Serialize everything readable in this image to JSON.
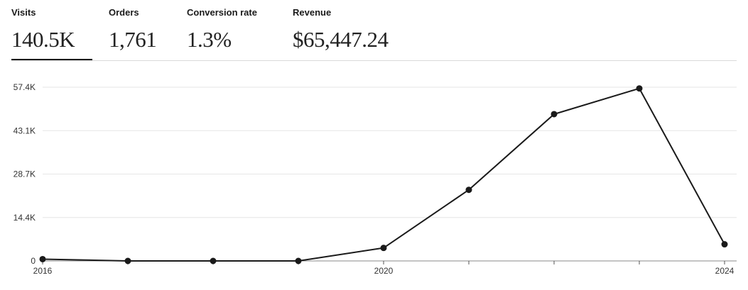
{
  "metrics": [
    {
      "label": "Visits",
      "value": "140.5K",
      "selected": true
    },
    {
      "label": "Orders",
      "value": "1,761",
      "selected": false
    },
    {
      "label": "Conversion rate",
      "value": "1.3%",
      "selected": false
    },
    {
      "label": "Revenue",
      "value": "$65,447.24",
      "selected": false
    }
  ],
  "chart_data": {
    "type": "line",
    "x": [
      2016,
      2017,
      2018,
      2019,
      2020,
      2021,
      2022,
      2023,
      2024
    ],
    "series": [
      {
        "values": [
          600,
          0,
          0,
          0,
          4300,
          23500,
          48500,
          57000,
          5500
        ]
      }
    ],
    "y_ticks": [
      "0",
      "14.4K",
      "28.7K",
      "43.1K",
      "57.4K"
    ],
    "y_tick_values": [
      0,
      14350,
      28700,
      43050,
      57400
    ],
    "x_tick_labels": [
      "2016",
      "2020",
      "2024"
    ],
    "x_labeled_values": [
      2016,
      2020,
      2024
    ],
    "xlim": [
      2016,
      2024
    ],
    "ylim": [
      0,
      57400
    ],
    "grid": true,
    "line_color": "#1a1a1a"
  }
}
